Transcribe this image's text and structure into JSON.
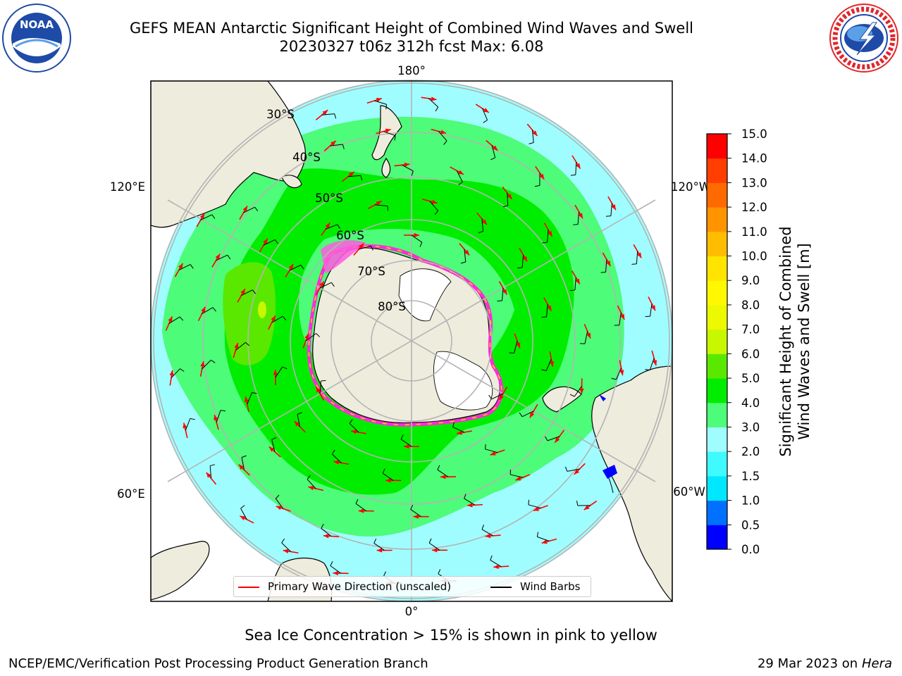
{
  "title": {
    "line1": "GEFS MEAN Antarctic Significant Height of Combined Wind Waves and Swell",
    "line2": "20230327 t06z 312h fcst   Max: 6.08"
  },
  "map": {
    "projection": "south-polar-stereographic",
    "longitude_labels": {
      "top": "180°",
      "left_upper": "120°E",
      "right_upper": "120°W",
      "left_lower": "60°E",
      "right_lower": "60°W",
      "bottom": "0°"
    },
    "latitude_labels": [
      "30°S",
      "40°S",
      "50°S",
      "60°S",
      "70°S",
      "80°S"
    ],
    "land_color": "#eeecdd",
    "grid_color": "#b4b4b4"
  },
  "colorbar": {
    "title_line1": "Significant Height of Combined",
    "title_line2": "Wind Waves and Swell [m]",
    "ticks": [
      "0.0",
      "0.5",
      "1.0",
      "1.5",
      "2.0",
      "3.0",
      "4.0",
      "5.0",
      "6.0",
      "7.0",
      "8.0",
      "9.0",
      "10.0",
      "11.0",
      "12.0",
      "13.0",
      "14.0",
      "15.0"
    ],
    "colors": [
      "#0000ff",
      "#0070ff",
      "#00e8ff",
      "#3ffbff",
      "#a0fdff",
      "#4dfc78",
      "#00ed00",
      "#5ae800",
      "#c8f700",
      "#ecf900",
      "#fff800",
      "#ffe400",
      "#ffbd00",
      "#ff9400",
      "#ff6a00",
      "#ff3e00",
      "#ff0000"
    ]
  },
  "legend": {
    "wave_label": "Primary Wave Direction (unscaled)",
    "wave_color": "#ff0000",
    "barb_label": "Wind Barbs",
    "barb_color": "#000000"
  },
  "note": "Sea Ice Concentration > 15% is shown in pink to yellow",
  "credit": "NCEP/EMC/Verification Post Processing Product Generation Branch",
  "date": {
    "text": "29 Mar 2023 on",
    "machine": "Hera"
  },
  "logos": {
    "noaa": {
      "text": "NOAA",
      "color": "#1e4aa8"
    },
    "nws": {
      "ring_text": "NATIONAL WEATHER SERVICE",
      "color": "#e0262b"
    }
  }
}
